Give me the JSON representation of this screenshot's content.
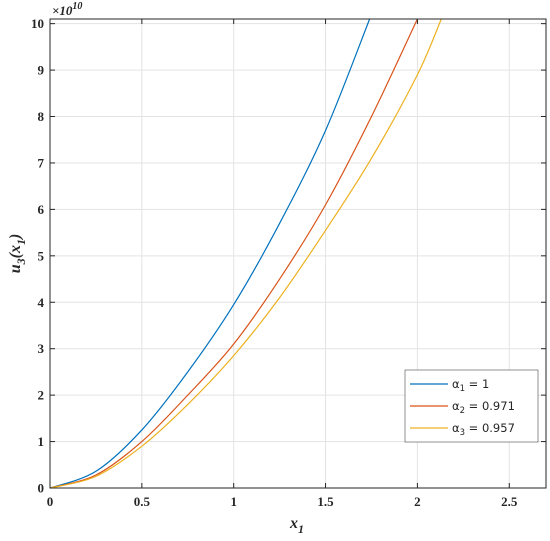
{
  "chart_data": {
    "type": "line",
    "title": "",
    "xlabel_main": "x",
    "xlabel_sub": "1",
    "ylabel_main": "u",
    "ylabel_sub": "3",
    "ylabel_paren_open": "(x",
    "ylabel_paren_sub": "1",
    "ylabel_paren_close": ")",
    "y_multiplier": "×10",
    "y_multiplier_exp": "10",
    "xlim": [
      0,
      2.7
    ],
    "ylim": [
      0,
      10.1
    ],
    "xticks": [
      0,
      0.5,
      1,
      1.5,
      2,
      2.5
    ],
    "xtick_labels": [
      "0",
      "0.5",
      "1",
      "1.5",
      "2",
      "2.5"
    ],
    "yticks": [
      0,
      1,
      2,
      3,
      4,
      5,
      6,
      7,
      8,
      9,
      10
    ],
    "ytick_labels": [
      "0",
      "1",
      "2",
      "3",
      "4",
      "5",
      "6",
      "7",
      "8",
      "9",
      "10"
    ],
    "grid": true,
    "legend_position": "lower-right",
    "series": [
      {
        "name": "α1 = 1",
        "greek": "α",
        "sub": "1",
        "rest": " = 1",
        "color": "#0072BD",
        "x": [
          0,
          0.25,
          0.5,
          0.75,
          1.0,
          1.25,
          1.5,
          1.74
        ],
        "y": [
          0,
          0.36,
          1.25,
          2.5,
          3.95,
          5.7,
          7.7,
          10.1
        ]
      },
      {
        "name": "α2 = 0.971",
        "greek": "α",
        "sub": "2",
        "rest": " = 0.971",
        "color": "#D95319",
        "x": [
          0,
          0.25,
          0.5,
          0.75,
          1.0,
          1.25,
          1.5,
          1.75,
          2.0
        ],
        "y": [
          0,
          0.28,
          1.0,
          2.0,
          3.1,
          4.5,
          6.1,
          8.0,
          10.1
        ]
      },
      {
        "name": "α3 = 0.957",
        "greek": "α",
        "sub": "3",
        "rest": " = 0.957",
        "color": "#EDB120",
        "x": [
          0,
          0.25,
          0.5,
          0.75,
          1.0,
          1.25,
          1.5,
          1.75,
          2.0,
          2.13
        ],
        "y": [
          0,
          0.25,
          0.9,
          1.8,
          2.85,
          4.1,
          5.55,
          7.1,
          8.9,
          10.1
        ]
      }
    ]
  }
}
